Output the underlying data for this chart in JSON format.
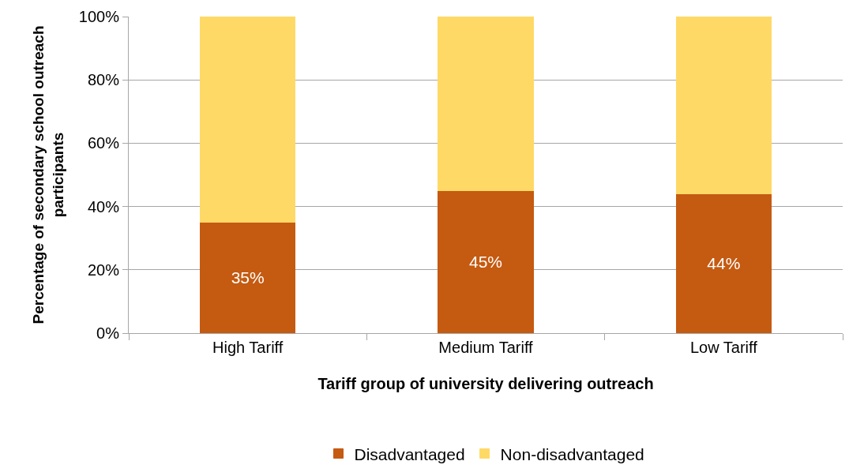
{
  "chart_data": {
    "type": "bar",
    "stacked": true,
    "xlabel": "Tariff group of university delivering outreach",
    "ylabel": "Percentage of secondary school outreach\nparticipants",
    "categories": [
      "High Tariff",
      "Medium Tariff",
      "Low Tariff"
    ],
    "series": [
      {
        "name": "Disadvantaged",
        "color": "#c55a11",
        "values": [
          35,
          45,
          44
        ],
        "value_labels": [
          "35%",
          "45%",
          "44%"
        ]
      },
      {
        "name": "Non-disadvantaged",
        "color": "#ffd966",
        "values": [
          65,
          55,
          56
        ]
      }
    ],
    "ylim": [
      0,
      100
    ],
    "yticks": [
      {
        "value": 0,
        "label": "0%"
      },
      {
        "value": 20,
        "label": "20%"
      },
      {
        "value": 40,
        "label": "40%"
      },
      {
        "value": 60,
        "label": "60%"
      },
      {
        "value": 80,
        "label": "80%"
      },
      {
        "value": 100,
        "label": "100%"
      }
    ],
    "grid": "y",
    "legend": "bottom"
  }
}
